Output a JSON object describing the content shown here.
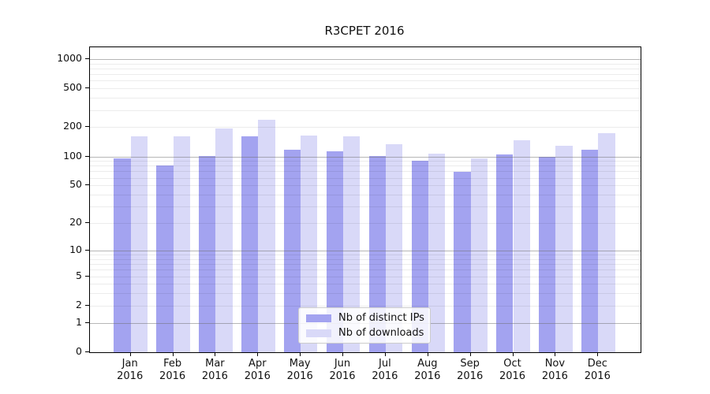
{
  "title": "R3CPET 2016",
  "chart_data": {
    "type": "bar",
    "title": "R3CPET 2016",
    "x_months": [
      "Jan",
      "Feb",
      "Mar",
      "Apr",
      "May",
      "Jun",
      "Jul",
      "Aug",
      "Sep",
      "Oct",
      "Nov",
      "Dec"
    ],
    "x_year": "2016",
    "categories": [
      "Jan 2016",
      "Feb 2016",
      "Mar 2016",
      "Apr 2016",
      "May 2016",
      "Jun 2016",
      "Jul 2016",
      "Aug 2016",
      "Sep 2016",
      "Oct 2016",
      "Nov 2016",
      "Dec 2016"
    ],
    "series": [
      {
        "name": "Nb of distinct IPs",
        "color": "#a3a3f0",
        "values": [
          96,
          81,
          101,
          162,
          117,
          114,
          101,
          90,
          69,
          105,
          100,
          117
        ]
      },
      {
        "name": "Nb of downloads",
        "color": "#d9d9f8",
        "values": [
          161,
          161,
          194,
          238,
          165,
          160,
          134,
          106,
          96,
          146,
          130,
          175
        ]
      }
    ],
    "y_ticks": [
      0,
      1,
      2,
      5,
      10,
      20,
      50,
      100,
      200,
      500,
      1000
    ],
    "y_scale": "log1p",
    "ylim": [
      0,
      1100
    ],
    "xlabel": "",
    "ylabel": "",
    "grid": "horizontal-only",
    "legend_position": "lower-center-inside",
    "colors": {
      "major_grid": "#b0b0b0",
      "minor_grid": "#ebebeb",
      "axis_frame": "#000000",
      "background": "#ffffff"
    }
  },
  "legend": {
    "items": [
      {
        "label": "Nb of distinct IPs",
        "color": "#a3a3f0"
      },
      {
        "label": "Nb of downloads",
        "color": "#d9d9f8"
      }
    ]
  }
}
